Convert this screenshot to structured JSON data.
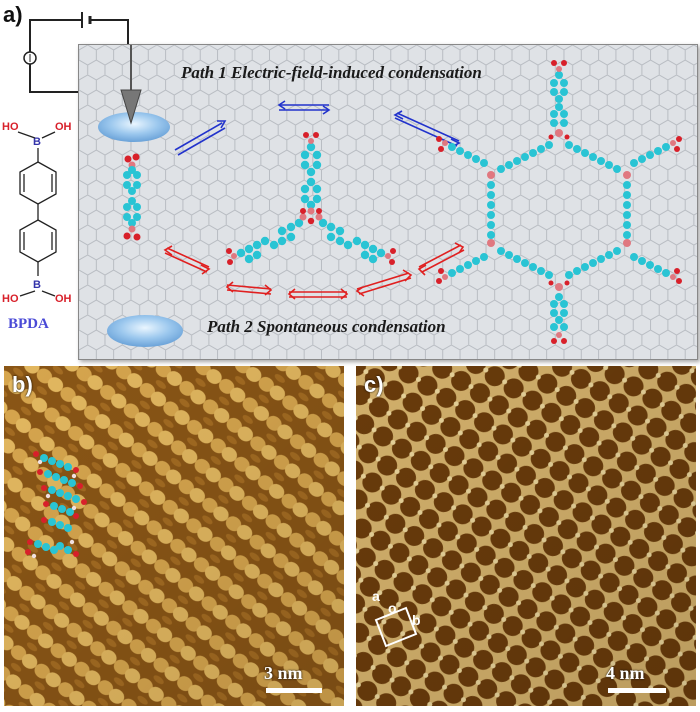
{
  "panel_labels": {
    "a": "a)",
    "b": "b)",
    "c": "c)"
  },
  "paths": {
    "path1": "Path 1 Electric-field-induced condensation",
    "path2": "Path 2 Spontaneous condensation"
  },
  "molecule": {
    "name": "BPDA",
    "boron_label": "B",
    "hydroxyl_label": "OH",
    "hydroxyl_label_left": "HO"
  },
  "scale_bars": {
    "b": "3 nm",
    "c": "4 nm"
  },
  "lattice_labels": {
    "a": "a",
    "b": "b",
    "o": "o"
  },
  "colors": {
    "arrow_blue": "#2233cc",
    "arrow_red": "#e02020",
    "carbon": "#29c4d4",
    "oxygen": "#d8202a",
    "boron": "#e07880",
    "stm_dark": "#7a4a10",
    "stm_light": "#e8c878",
    "label_blue": "#4a4ad6"
  }
}
